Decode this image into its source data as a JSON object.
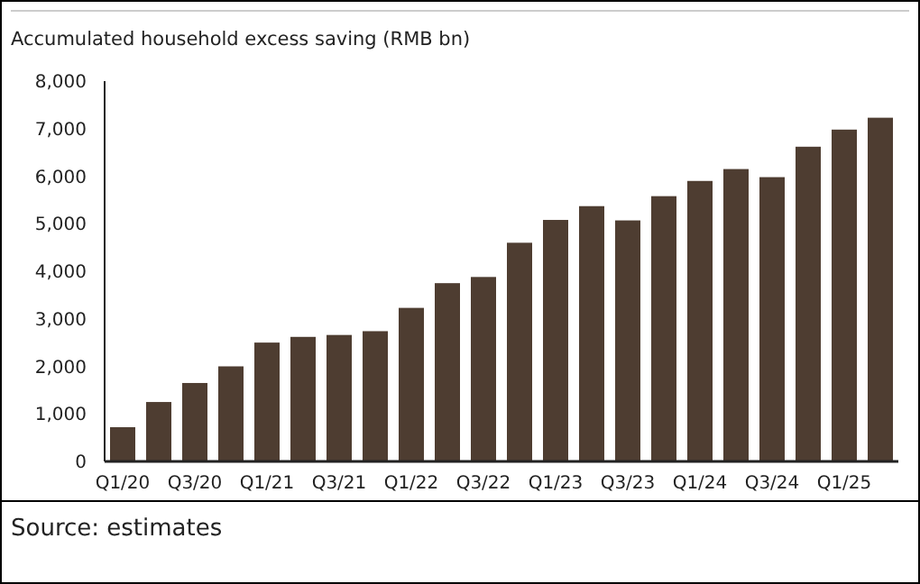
{
  "chart_data": {
    "type": "bar",
    "title": "Accumulated household excess saving (RMB bn)",
    "categories": [
      "Q1/20",
      null,
      "Q3/20",
      null,
      "Q1/21",
      null,
      "Q3/21",
      null,
      "Q1/22",
      null,
      "Q3/22",
      null,
      "Q1/23",
      null,
      "Q3/23",
      null,
      "Q1/24",
      null,
      "Q3/24",
      null,
      "Q1/25",
      null
    ],
    "values": [
      720,
      1250,
      1650,
      2000,
      2500,
      2620,
      2660,
      2740,
      3230,
      3750,
      3880,
      4600,
      5080,
      5370,
      5070,
      5580,
      5900,
      6150,
      5980,
      6620,
      6980,
      7230
    ],
    "color": "#4e3d31",
    "ylim": [
      0,
      8000
    ],
    "yticks": [
      {
        "value": 0,
        "label": "0"
      },
      {
        "value": 1000,
        "label": "1,000"
      },
      {
        "value": 2000,
        "label": "2,000"
      },
      {
        "value": 3000,
        "label": "3,000"
      },
      {
        "value": 4000,
        "label": "4,000"
      },
      {
        "value": 5000,
        "label": "5,000"
      },
      {
        "value": 6000,
        "label": "6,000"
      },
      {
        "value": 7000,
        "label": "7,000"
      },
      {
        "value": 8000,
        "label": "8,000"
      }
    ],
    "annotations": [
      "Source: estimates"
    ]
  }
}
